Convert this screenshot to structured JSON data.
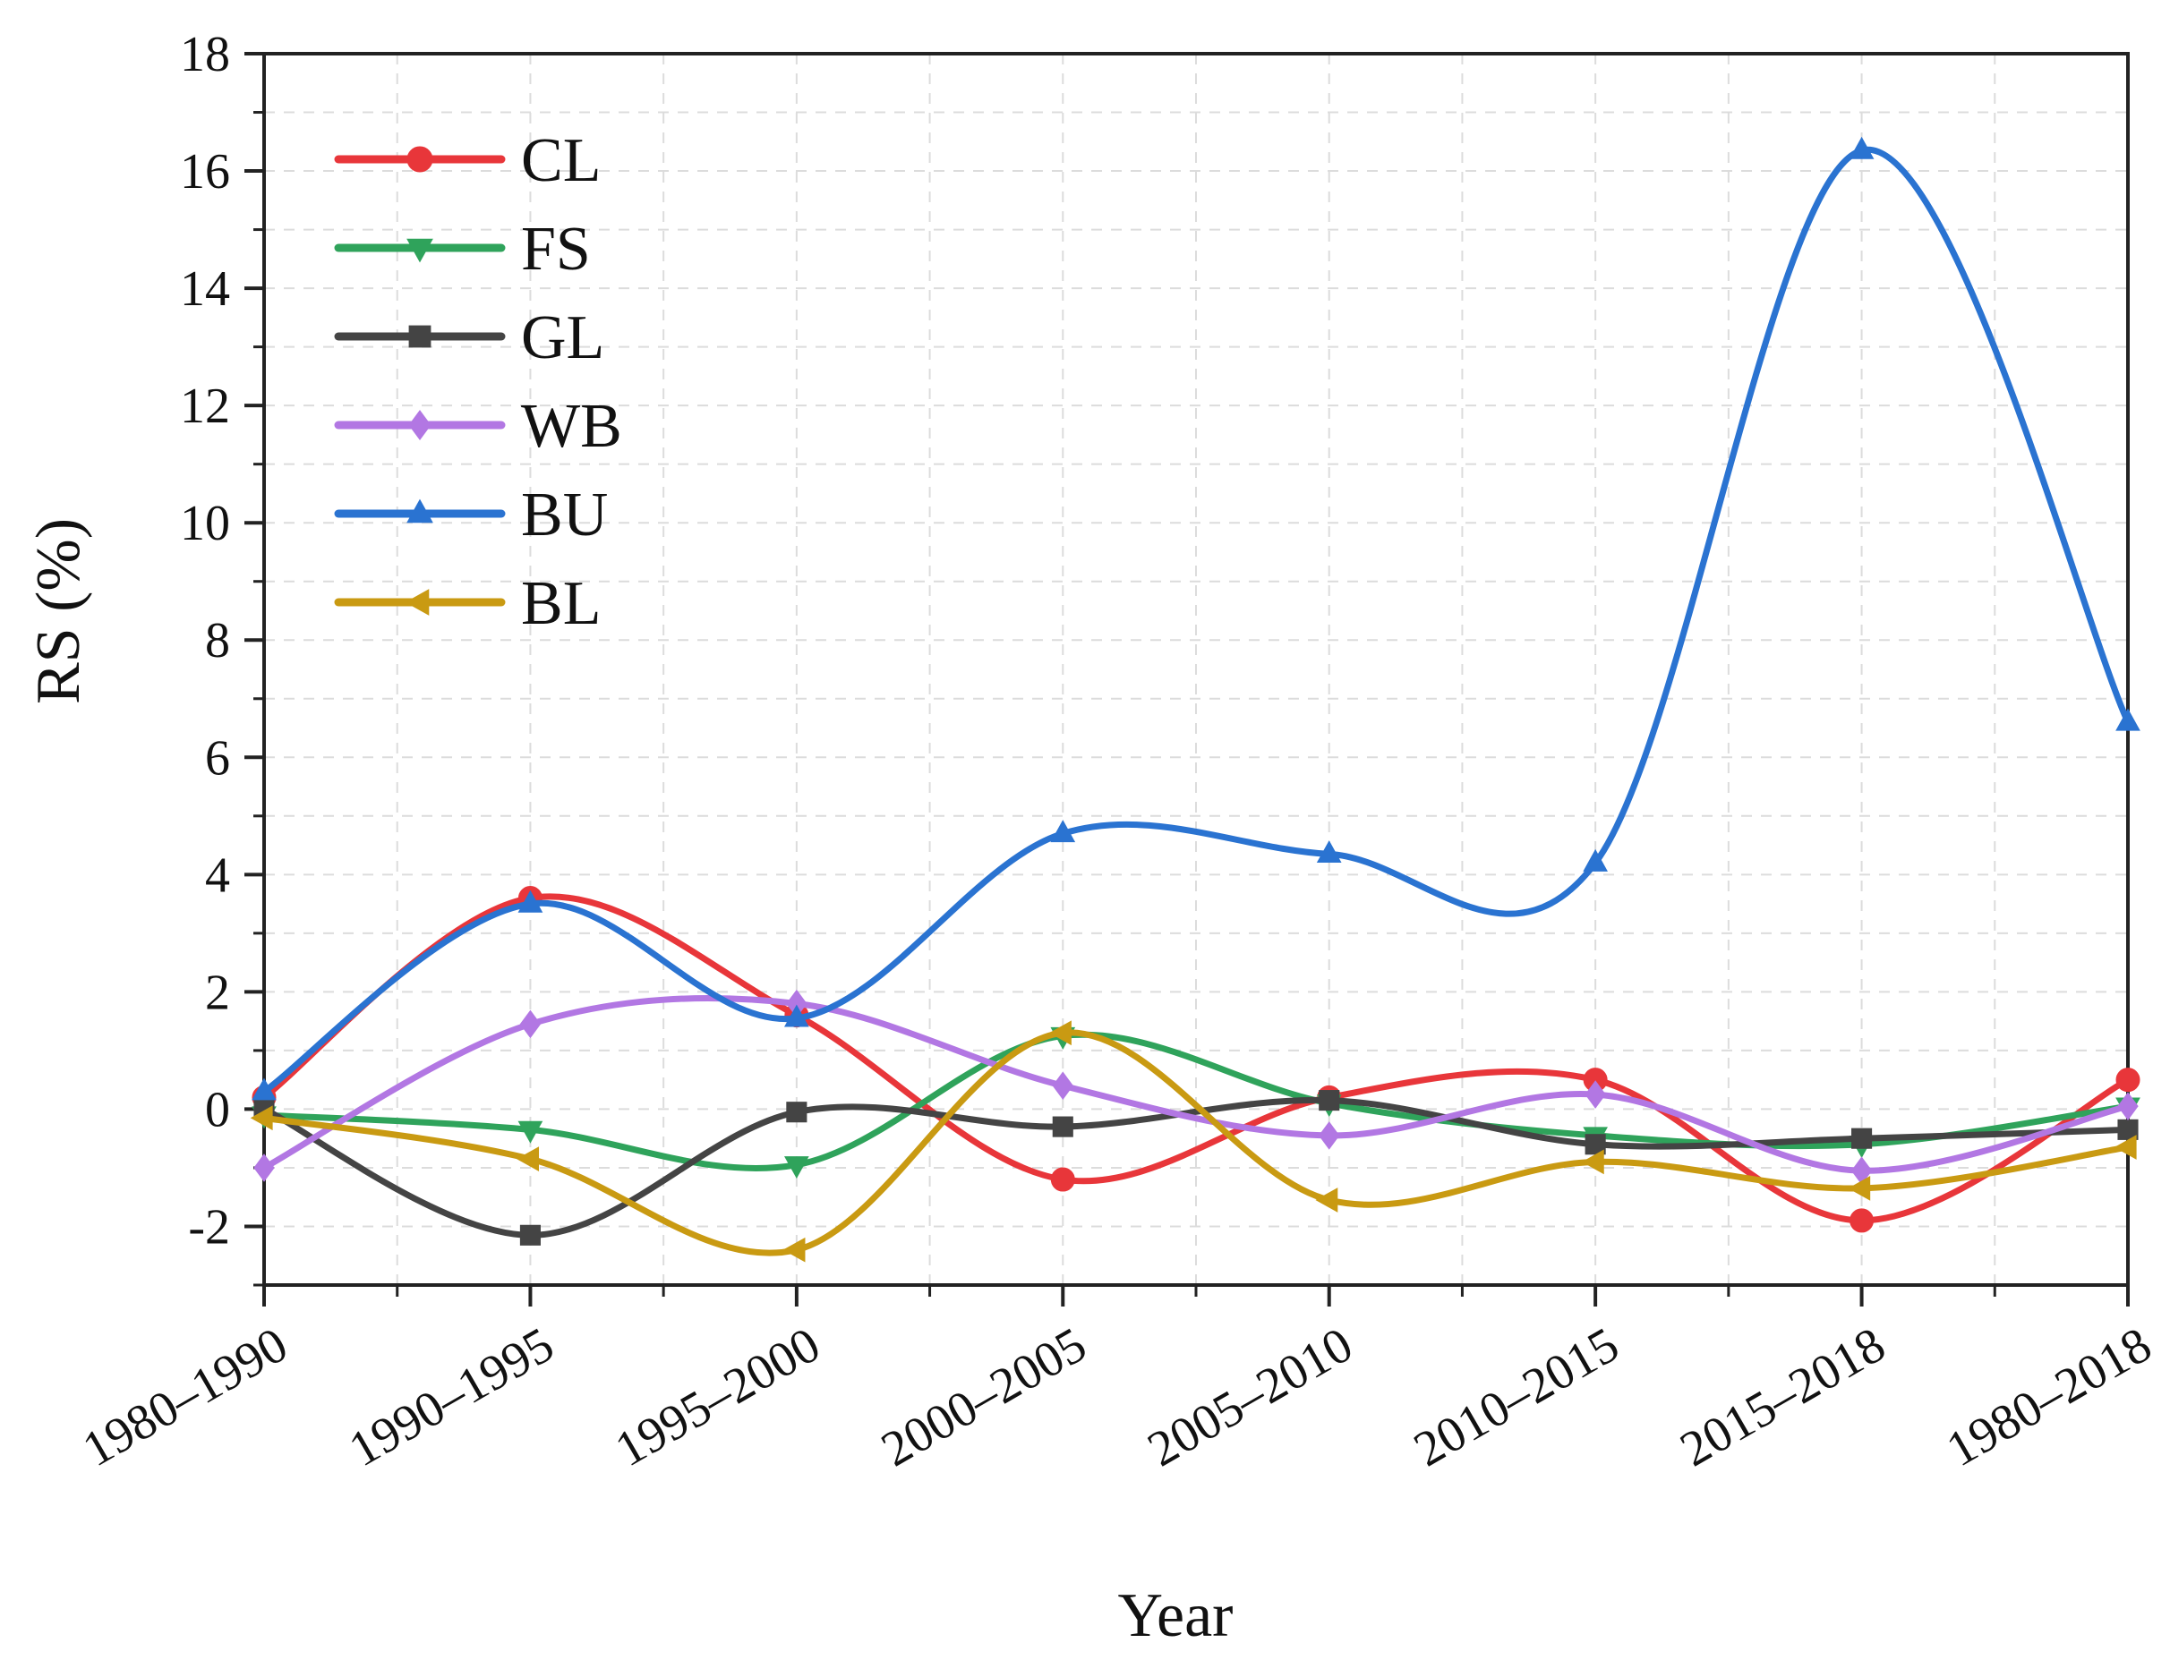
{
  "chart_data": {
    "type": "line",
    "title": "",
    "xlabel": "Year",
    "ylabel": "RS (%)",
    "categories": [
      "1980–1990",
      "1990–1995",
      "1995–2000",
      "2000–2005",
      "2005–2010",
      "2010–2015",
      "2015–2018",
      "1980–2018"
    ],
    "ylim": [
      -3,
      18
    ],
    "yticks": [
      -2,
      0,
      2,
      4,
      6,
      8,
      10,
      12,
      14,
      16,
      18
    ],
    "ytick_labels": [
      "-2",
      "0",
      "2",
      "4",
      "6",
      "8",
      "10",
      "12",
      "14",
      "16",
      "18"
    ],
    "grid": true,
    "legend_position": "top-left",
    "series": [
      {
        "name": "CL",
        "color": "#e8363a",
        "marker": "circle",
        "values": [
          0.2,
          3.6,
          1.6,
          -1.2,
          0.2,
          0.5,
          -1.9,
          0.5
        ]
      },
      {
        "name": "FS",
        "color": "#2fa35b",
        "marker": "triangle-down",
        "values": [
          -0.1,
          -0.35,
          -0.95,
          1.25,
          0.1,
          -0.45,
          -0.6,
          0.05
        ]
      },
      {
        "name": "GL",
        "color": "#444444",
        "marker": "square",
        "values": [
          0.0,
          -2.15,
          -0.05,
          -0.3,
          0.15,
          -0.6,
          -0.5,
          -0.35
        ]
      },
      {
        "name": "WB",
        "color": "#b277e3",
        "marker": "diamond",
        "values": [
          -1.0,
          1.45,
          1.8,
          0.4,
          -0.45,
          0.25,
          -1.05,
          0.05
        ]
      },
      {
        "name": "BU",
        "color": "#2a73d1",
        "marker": "triangle-up",
        "values": [
          0.3,
          3.5,
          1.55,
          4.7,
          4.35,
          4.2,
          16.35,
          6.6
        ]
      },
      {
        "name": "BL",
        "color": "#c99a12",
        "marker": "triangle-left",
        "values": [
          -0.15,
          -0.85,
          -2.4,
          1.3,
          -1.55,
          -0.9,
          -1.35,
          -0.65
        ]
      }
    ]
  }
}
